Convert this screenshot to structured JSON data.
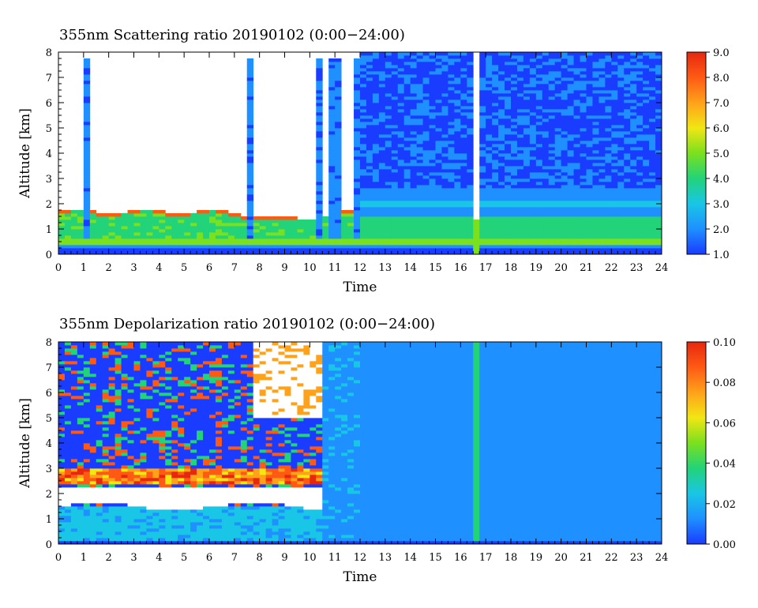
{
  "chart_data": [
    {
      "type": "heatmap",
      "title": "355nm Scattering ratio  20190102 (0:00−24:00)",
      "xlabel": "Time",
      "ylabel": "Altitude [km]",
      "xlim": [
        0,
        24
      ],
      "ylim": [
        0,
        8
      ],
      "x_ticks": [
        "0",
        "1",
        "2",
        "3",
        "4",
        "5",
        "6",
        "7",
        "8",
        "9",
        "10",
        "11",
        "12",
        "13",
        "14",
        "15",
        "16",
        "17",
        "18",
        "19",
        "20",
        "21",
        "22",
        "23",
        "24"
      ],
      "y_ticks": [
        "0",
        "1",
        "2",
        "3",
        "4",
        "5",
        "6",
        "7",
        "8"
      ],
      "colorbar": {
        "range": [
          1.0,
          9.0
        ],
        "ticks": [
          "1.0",
          "2.0",
          "3.0",
          "4.0",
          "5.0",
          "6.0",
          "7.0",
          "8.0",
          "9.0"
        ]
      },
      "features": {
        "boundary_layer_top_km": 1.6,
        "missing_data_before_hour": 12,
        "cloud_spikes_hours": [
          1.1,
          7.6,
          10.4,
          10.9,
          11.2,
          11.5,
          11.8,
          12.1
        ],
        "data_gap_hours": [
          16.5,
          16.7
        ],
        "elevated_layer_after_12h_km": 2.0
      }
    },
    {
      "type": "heatmap",
      "title": "355nm Depolarization ratio  20190102 (0:00−24:00)",
      "xlabel": "Time",
      "ylabel": "Altitude [km]",
      "xlim": [
        0,
        24
      ],
      "ylim": [
        0,
        8
      ],
      "x_ticks": [
        "0",
        "1",
        "2",
        "3",
        "4",
        "5",
        "6",
        "7",
        "8",
        "9",
        "10",
        "11",
        "12",
        "13",
        "14",
        "15",
        "16",
        "17",
        "18",
        "19",
        "20",
        "21",
        "22",
        "23",
        "24"
      ],
      "y_ticks": [
        "0",
        "1",
        "2",
        "3",
        "4",
        "5",
        "6",
        "7",
        "8"
      ],
      "colorbar": {
        "range": [
          0.0,
          0.1
        ],
        "ticks": [
          "0.00",
          "0.02",
          "0.04",
          "0.06",
          "0.08",
          "0.10"
        ]
      },
      "features": {
        "noisy_high_region_until_hour": 10.5,
        "saturated_layer_km": [
          1.5,
          2.3
        ],
        "noisy_band_km": [
          2.4,
          3.0
        ],
        "clean_after_hour": 12
      }
    }
  ],
  "colors": {
    "scale": [
      "#1a3cff",
      "#1e90ff",
      "#19c6e6",
      "#22d37a",
      "#7be01e",
      "#f2e613",
      "#ffa21a",
      "#ff5a14",
      "#e6280f"
    ],
    "saturated": "#ffffff",
    "frame": "#000000"
  }
}
